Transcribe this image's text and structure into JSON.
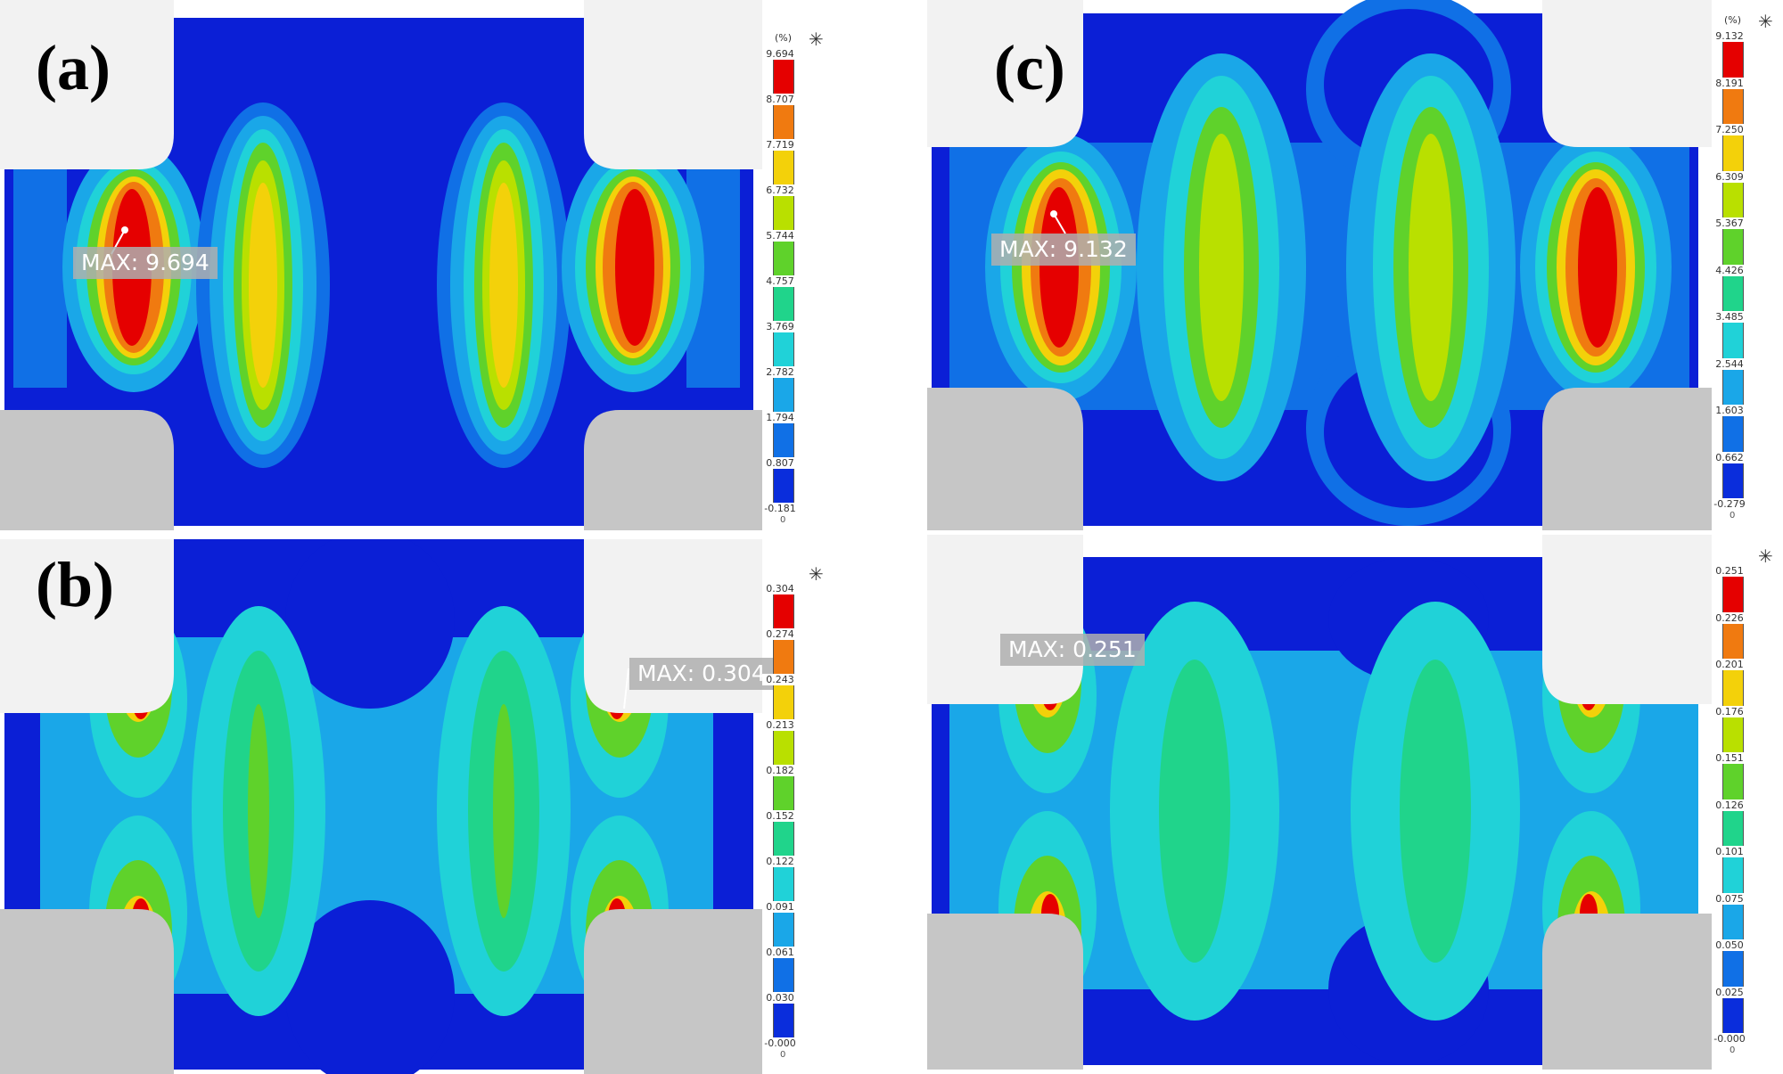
{
  "panels": [
    {
      "id": "a",
      "label": "(a)",
      "unit": "(%)",
      "max_label": "MAX: 9.694",
      "legend_ticks": [
        "9.694",
        "8.707",
        "7.719",
        "6.732",
        "5.744",
        "4.757",
        "3.769",
        "2.782",
        "1.794",
        "0.807",
        "-0.181"
      ],
      "legend_zero": "0",
      "legend_star": "✳"
    },
    {
      "id": "b",
      "label": "(b)",
      "unit": "",
      "max_label": "MAX: 0.304",
      "legend_ticks": [
        "0.304",
        "0.274",
        "0.243",
        "0.213",
        "0.182",
        "0.152",
        "0.122",
        "0.091",
        "0.061",
        "0.030",
        "-0.000"
      ],
      "legend_zero": "0",
      "legend_star": "✳"
    },
    {
      "id": "c",
      "label": "(c)",
      "unit": "(%)",
      "max_label": "MAX: 9.132",
      "legend_ticks": [
        "9.132",
        "8.191",
        "7.250",
        "6.309",
        "5.367",
        "4.426",
        "3.485",
        "2.544",
        "1.603",
        "0.662",
        "-0.279"
      ],
      "legend_zero": "0",
      "legend_star": "✳"
    },
    {
      "id": "d",
      "label": "",
      "unit": "",
      "max_label": "MAX: 0.251",
      "legend_ticks": [
        "0.251",
        "0.226",
        "0.201",
        "0.176",
        "0.151",
        "0.126",
        "0.101",
        "0.075",
        "0.050",
        "0.025",
        "-0.000"
      ],
      "legend_zero": "0",
      "legend_star": "✳"
    }
  ],
  "colormap": [
    "#e50000",
    "#f07a10",
    "#f3d10a",
    "#b9e000",
    "#5fd22b",
    "#20d48b",
    "#20d2d8",
    "#1aa7e8",
    "#1070e6",
    "#0a2ddc"
  ],
  "colors": {
    "dark_blue": "#0b1fd6",
    "grip_top": "#f2f2f2",
    "grip_bottom": "#c6c6c6"
  }
}
